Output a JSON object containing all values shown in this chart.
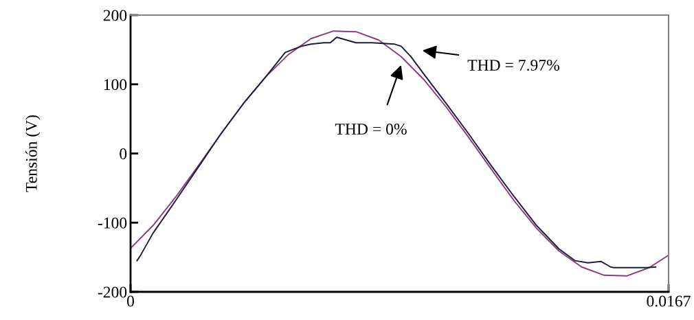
{
  "chart_data": {
    "type": "line",
    "ylabel": "Tensión (V)",
    "xlim": [
      0,
      0.0167
    ],
    "xticks": [
      0,
      0.0167
    ],
    "ylim": [
      -200,
      200
    ],
    "yticks": [
      -200,
      -100,
      0,
      100,
      200
    ],
    "grid": false,
    "legend": false,
    "series": [
      {
        "color": "#8a3c7c",
        "x": [
          0,
          0.0007,
          0.0014,
          0.0021,
          0.0028,
          0.0035,
          0.0042,
          0.0049,
          0.0056,
          0.0063,
          0.007,
          0.0077,
          0.0084,
          0.0091,
          0.0098,
          0.0105,
          0.0112,
          0.0119,
          0.0126,
          0.0133,
          0.014,
          0.0147,
          0.0154,
          0.0161,
          0.0167
        ],
        "values": [
          -137,
          -104,
          -63,
          -18,
          28,
          72,
          111,
          143,
          166,
          177,
          176,
          164,
          140,
          107,
          67,
          23,
          -23,
          -68,
          -108,
          -141,
          -164,
          -176,
          -177,
          -165,
          -147
        ]
      },
      {
        "color": "#1c1c3c",
        "x": [
          0.0002,
          0.0003,
          0.0007,
          0.0014,
          0.0021,
          0.0028,
          0.0035,
          0.0042,
          0.0048,
          0.0053,
          0.0056,
          0.006,
          0.0062,
          0.0064,
          0.0067,
          0.007,
          0.0075,
          0.0082,
          0.0084,
          0.0087,
          0.0091,
          0.0098,
          0.0105,
          0.0112,
          0.0119,
          0.0126,
          0.0133,
          0.0138,
          0.0142,
          0.0146,
          0.0149,
          0.015,
          0.0155,
          0.016,
          0.0163
        ],
        "values": [
          -155,
          -148,
          -115,
          -68,
          -20,
          28,
          72,
          111,
          146,
          155,
          158,
          160,
          160,
          168,
          164,
          160,
          160,
          158,
          155,
          140,
          115,
          72,
          28,
          -18,
          -62,
          -104,
          -138,
          -155,
          -158,
          -156,
          -164,
          -165,
          -165,
          -165,
          -164
        ]
      }
    ],
    "annotations": [
      "THD = 7.97%",
      "THD = 0%"
    ]
  }
}
